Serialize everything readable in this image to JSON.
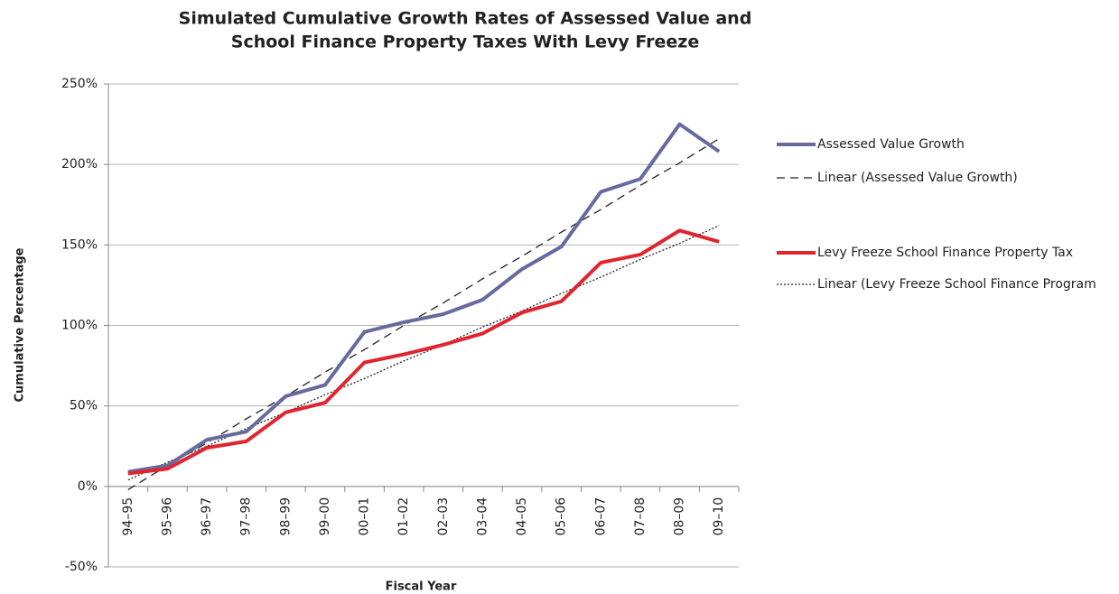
{
  "chart_data": {
    "type": "line",
    "title": [
      "Simulated Cumulative Growth Rates of Assessed Value and",
      "School Finance Property Taxes With Levy Freeze"
    ],
    "y_label": "Cumulative Percentage",
    "x_label": "Fiscal Year",
    "categories": [
      "94–95",
      "95–96",
      "96–97",
      "97–98",
      "98–99",
      "99–00",
      "00–01",
      "01–02",
      "02–03",
      "03–04",
      "04–05",
      "05–06",
      "06–07",
      "07–08",
      "08–09",
      "09–10"
    ],
    "series": [
      {
        "name": "Assessed Value Growth",
        "color": "#676a9e",
        "width": 4,
        "dash": "none",
        "values": [
          9,
          13,
          29,
          34,
          56,
          63,
          96,
          102,
          107,
          116,
          135,
          149,
          183,
          191,
          225,
          208
        ]
      },
      {
        "name": "Linear (Assessed Value Growth)",
        "color": "#222222",
        "width": 1.3,
        "dash": "9 6",
        "values": [
          -2,
          13,
          27,
          42,
          56,
          71,
          85,
          100,
          114,
          129,
          143,
          158,
          172,
          187,
          201,
          216
        ]
      },
      {
        "name": "Levy Freeze School Finance Property Tax",
        "color": "#e0252f",
        "width": 4,
        "dash": "none",
        "values": [
          8,
          11,
          24,
          28,
          46,
          52,
          77,
          82,
          88,
          95,
          108,
          115,
          139,
          144,
          159,
          152
        ]
      },
      {
        "name": "Linear (Levy Freeze School Finance Program",
        "color": "#222222",
        "width": 1.3,
        "dash": "2 2",
        "values": [
          4,
          15,
          25,
          36,
          46,
          57,
          67,
          78,
          88,
          99,
          109,
          120,
          130,
          141,
          151,
          162
        ]
      }
    ],
    "ylim": [
      -50,
      250
    ],
    "yticks": [
      {
        "value": -50,
        "label": "-50%"
      },
      {
        "value": 0,
        "label": "0%"
      },
      {
        "value": 50,
        "label": "50%"
      },
      {
        "value": 100,
        "label": "100%"
      },
      {
        "value": 150,
        "label": "150%"
      },
      {
        "value": 200,
        "label": "200%"
      },
      {
        "value": 250,
        "label": "250%"
      }
    ],
    "grid": true,
    "legend": "right"
  }
}
